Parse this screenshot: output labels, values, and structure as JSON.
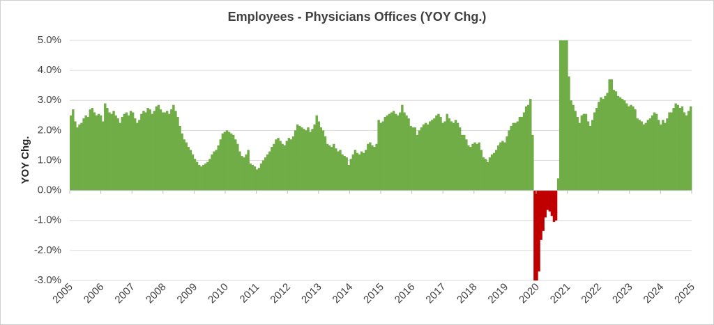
{
  "chart_data": {
    "type": "bar",
    "title": "Employees - Physicians Offices (YOY Chg.)",
    "xlabel": "",
    "ylabel": "YOY Chg.",
    "ylim": [
      -3.0,
      5.0
    ],
    "yticks": [
      "5.0%",
      "4.0%",
      "3.0%",
      "2.0%",
      "1.0%",
      "0.0%",
      "-1.0%",
      "-2.0%",
      "-3.0%"
    ],
    "xticks": [
      "2005",
      "2006",
      "2007",
      "2008",
      "2009",
      "2010",
      "2011",
      "2012",
      "2013",
      "2014",
      "2015",
      "2016",
      "2017",
      "2018",
      "2019",
      "2020",
      "2021",
      "2022",
      "2023",
      "2024",
      "2025"
    ],
    "grid": true,
    "legend": "none",
    "positive_color": "#70ad47",
    "negative_color": "#c00000",
    "x_start": "2005-01",
    "x_end": "2025-01",
    "values": [
      2.5,
      2.7,
      2.3,
      2.1,
      2.2,
      2.25,
      2.4,
      2.5,
      2.45,
      2.7,
      2.75,
      2.6,
      2.5,
      2.55,
      2.5,
      2.3,
      2.9,
      2.75,
      2.6,
      2.55,
      2.65,
      2.5,
      2.4,
      2.25,
      2.45,
      2.55,
      2.6,
      2.5,
      2.65,
      2.6,
      2.4,
      2.25,
      2.35,
      2.55,
      2.65,
      2.6,
      2.75,
      2.7,
      2.55,
      2.65,
      2.8,
      2.85,
      2.7,
      2.6,
      2.6,
      2.65,
      2.55,
      2.7,
      2.85,
      2.65,
      2.45,
      2.15,
      1.9,
      1.7,
      1.6,
      1.45,
      1.35,
      1.2,
      1.05,
      0.95,
      0.85,
      0.8,
      0.85,
      0.9,
      0.95,
      1.05,
      1.2,
      1.3,
      1.35,
      1.5,
      1.7,
      1.9,
      1.95,
      2.0,
      1.95,
      1.9,
      1.85,
      1.7,
      1.55,
      1.3,
      1.15,
      1.1,
      1.2,
      1.35,
      0.9,
      0.85,
      0.8,
      0.7,
      0.75,
      0.9,
      1.0,
      1.1,
      1.2,
      1.3,
      1.45,
      1.55,
      1.7,
      1.75,
      1.65,
      1.55,
      1.5,
      1.65,
      1.75,
      1.7,
      1.8,
      2.0,
      2.2,
      2.15,
      2.1,
      2.05,
      2.0,
      2.1,
      1.95,
      2.05,
      2.2,
      2.5,
      2.3,
      2.1,
      2.0,
      1.8,
      1.55,
      1.5,
      1.45,
      1.55,
      1.4,
      1.3,
      1.35,
      1.2,
      1.15,
      1.1,
      0.85,
      1.05,
      1.2,
      1.35,
      1.25,
      1.2,
      1.3,
      1.25,
      1.35,
      1.55,
      1.6,
      1.5,
      1.45,
      1.55,
      2.35,
      2.25,
      2.3,
      2.45,
      2.5,
      2.55,
      2.6,
      2.65,
      2.55,
      2.5,
      2.6,
      2.85,
      2.6,
      2.5,
      2.4,
      2.15,
      2.1,
      2.1,
      1.85,
      2.0,
      2.1,
      2.2,
      2.25,
      2.2,
      2.3,
      2.35,
      2.4,
      2.5,
      2.55,
      2.45,
      2.25,
      2.3,
      2.55,
      2.4,
      2.3,
      2.25,
      2.35,
      2.25,
      2.1,
      1.85,
      1.85,
      1.7,
      1.5,
      1.45,
      1.55,
      1.6,
      1.55,
      1.6,
      1.35,
      1.1,
      1.05,
      0.95,
      1.1,
      1.2,
      1.25,
      1.35,
      1.5,
      1.6,
      1.65,
      1.6,
      1.8,
      2.0,
      2.15,
      2.25,
      2.25,
      2.3,
      2.45,
      2.45,
      2.6,
      2.8,
      2.85,
      3.05,
      1.85,
      -3.0,
      -3.0,
      -2.7,
      -1.65,
      -1.35,
      -0.9,
      -0.65,
      -0.7,
      -0.85,
      -1.05,
      -1.0,
      0.4,
      5.0,
      5.0,
      5.0,
      5.0,
      3.8,
      3.0,
      2.85,
      2.65,
      2.45,
      2.25,
      2.5,
      2.55,
      2.55,
      2.3,
      2.15,
      2.35,
      2.6,
      2.75,
      2.95,
      3.1,
      3.05,
      3.15,
      3.25,
      3.7,
      3.7,
      3.35,
      3.3,
      3.15,
      3.1,
      3.05,
      3.0,
      2.9,
      2.8,
      2.85,
      2.8,
      2.7,
      2.4,
      2.35,
      2.3,
      2.2,
      2.25,
      2.35,
      2.4,
      2.5,
      2.6,
      2.55,
      2.35,
      2.2,
      2.35,
      2.25,
      2.4,
      2.6,
      2.6,
      2.75,
      2.9,
      2.85,
      2.75,
      2.8,
      2.6,
      2.5,
      2.65,
      2.8
    ]
  }
}
